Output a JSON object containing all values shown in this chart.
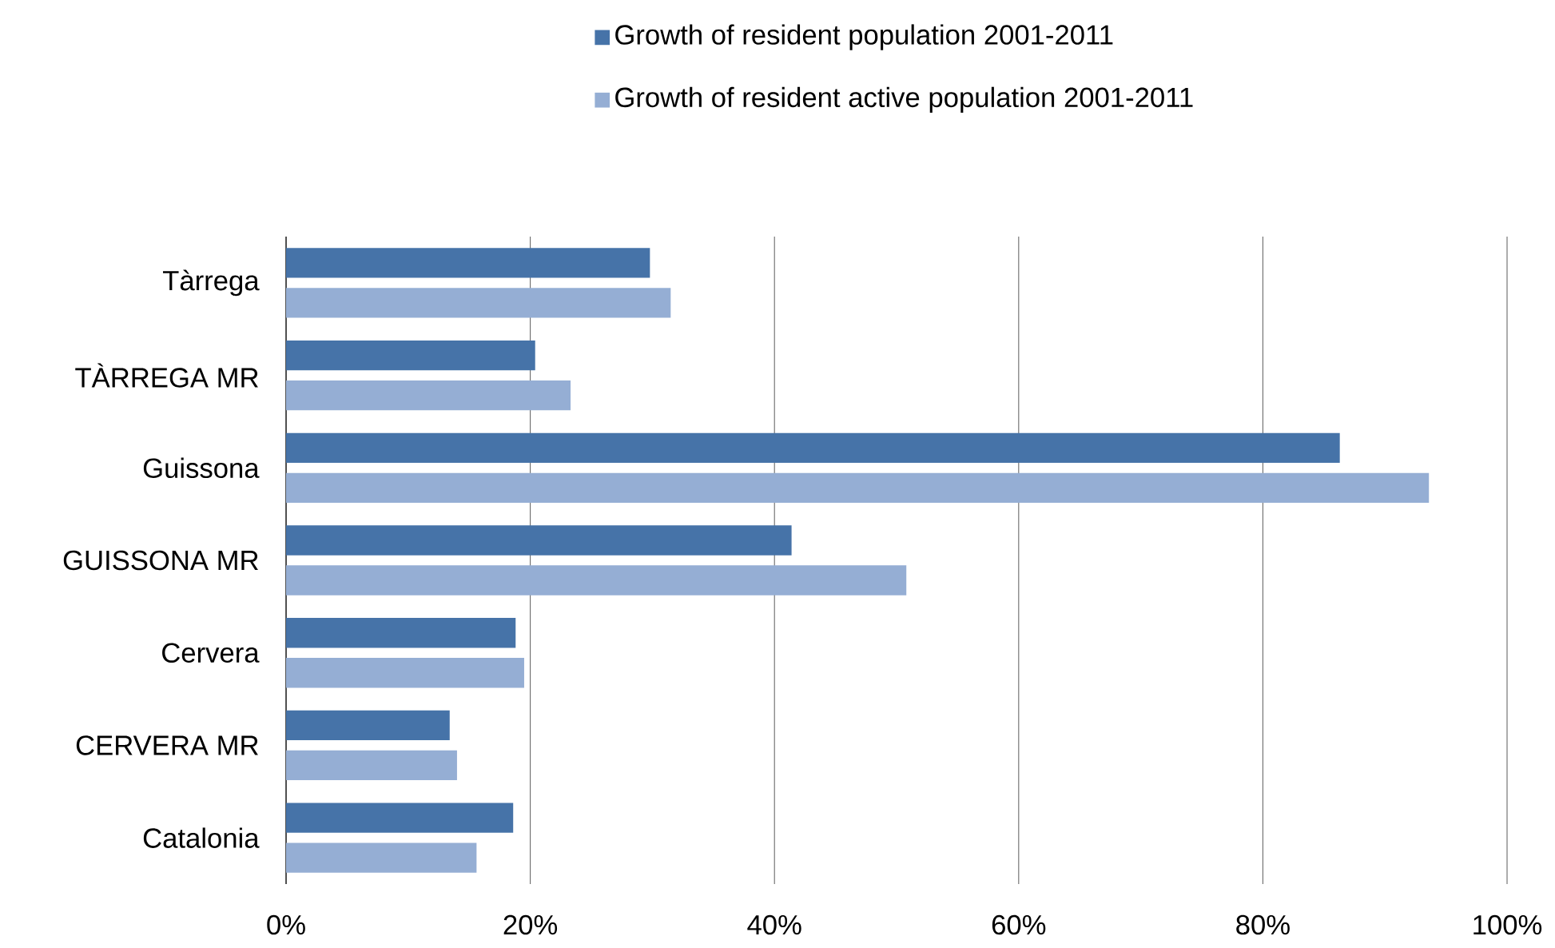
{
  "chart_data": {
    "type": "bar",
    "orientation": "horizontal",
    "categories": [
      "Tàrrega",
      "TÀRREGA MR",
      "Guissona",
      "GUISSONA MR",
      "Cervera",
      "CERVERA MR",
      "Catalonia"
    ],
    "series": [
      {
        "name": "Growth of resident population 2001-2011",
        "color": "#4673a8",
        "values": [
          29.8,
          20.4,
          86.3,
          41.4,
          18.8,
          13.4,
          18.6
        ]
      },
      {
        "name": "Growth of resident active population 2001-2011",
        "color": "#95aed4",
        "values": [
          31.5,
          23.3,
          93.6,
          50.8,
          19.5,
          14.0,
          15.6
        ]
      }
    ],
    "xlim": [
      0,
      100
    ],
    "xticks": [
      {
        "value": 0,
        "label": "0%"
      },
      {
        "value": 20,
        "label": "20%"
      },
      {
        "value": 40,
        "label": "40%"
      },
      {
        "value": 60,
        "label": "60%"
      },
      {
        "value": 80,
        "label": "80%"
      },
      {
        "value": 100,
        "label": "100%"
      }
    ],
    "grid": "x",
    "legend": "top"
  }
}
